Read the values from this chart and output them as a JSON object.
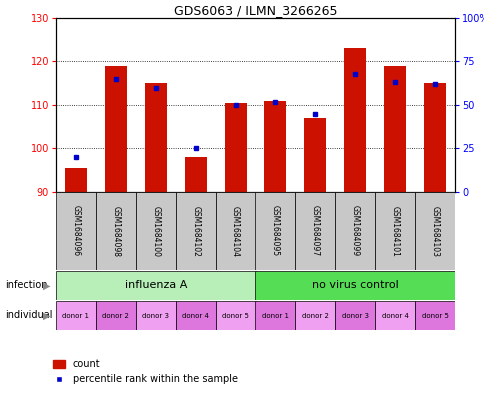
{
  "title": "GDS6063 / ILMN_3266265",
  "samples": [
    "GSM1684096",
    "GSM1684098",
    "GSM1684100",
    "GSM1684102",
    "GSM1684104",
    "GSM1684095",
    "GSM1684097",
    "GSM1684099",
    "GSM1684101",
    "GSM1684103"
  ],
  "counts": [
    95.5,
    119.0,
    115.0,
    98.0,
    110.5,
    111.0,
    107.0,
    123.0,
    119.0,
    115.0
  ],
  "percentiles": [
    20,
    65,
    60,
    25,
    50,
    52,
    45,
    68,
    63,
    62
  ],
  "ylim_left": [
    90,
    130
  ],
  "ylim_right": [
    0,
    100
  ],
  "yticks_left": [
    90,
    100,
    110,
    120,
    130
  ],
  "yticks_right": [
    0,
    25,
    50,
    75,
    100
  ],
  "ytick_labels_right": [
    "0",
    "25",
    "50",
    "75",
    "100%"
  ],
  "infection_groups": [
    {
      "label": "influenza A",
      "start": 0,
      "end": 5,
      "color": "#B8EFB8"
    },
    {
      "label": "no virus control",
      "start": 5,
      "end": 10,
      "color": "#55DD55"
    }
  ],
  "individual_labels": [
    "donor 1",
    "donor 2",
    "donor 3",
    "donor 4",
    "donor 5",
    "donor 1",
    "donor 2",
    "donor 3",
    "donor 4",
    "donor 5"
  ],
  "bar_color": "#CC1100",
  "blue_color": "#0000CC",
  "sample_bg_color": "#C8C8C8",
  "baseline": 90,
  "bar_width": 0.55,
  "legend_count_label": "count",
  "legend_pct_label": "percentile rank within the sample",
  "ind_colors": [
    "#F0A0F0",
    "#DD77DD"
  ],
  "outer_border_color": "#888888"
}
